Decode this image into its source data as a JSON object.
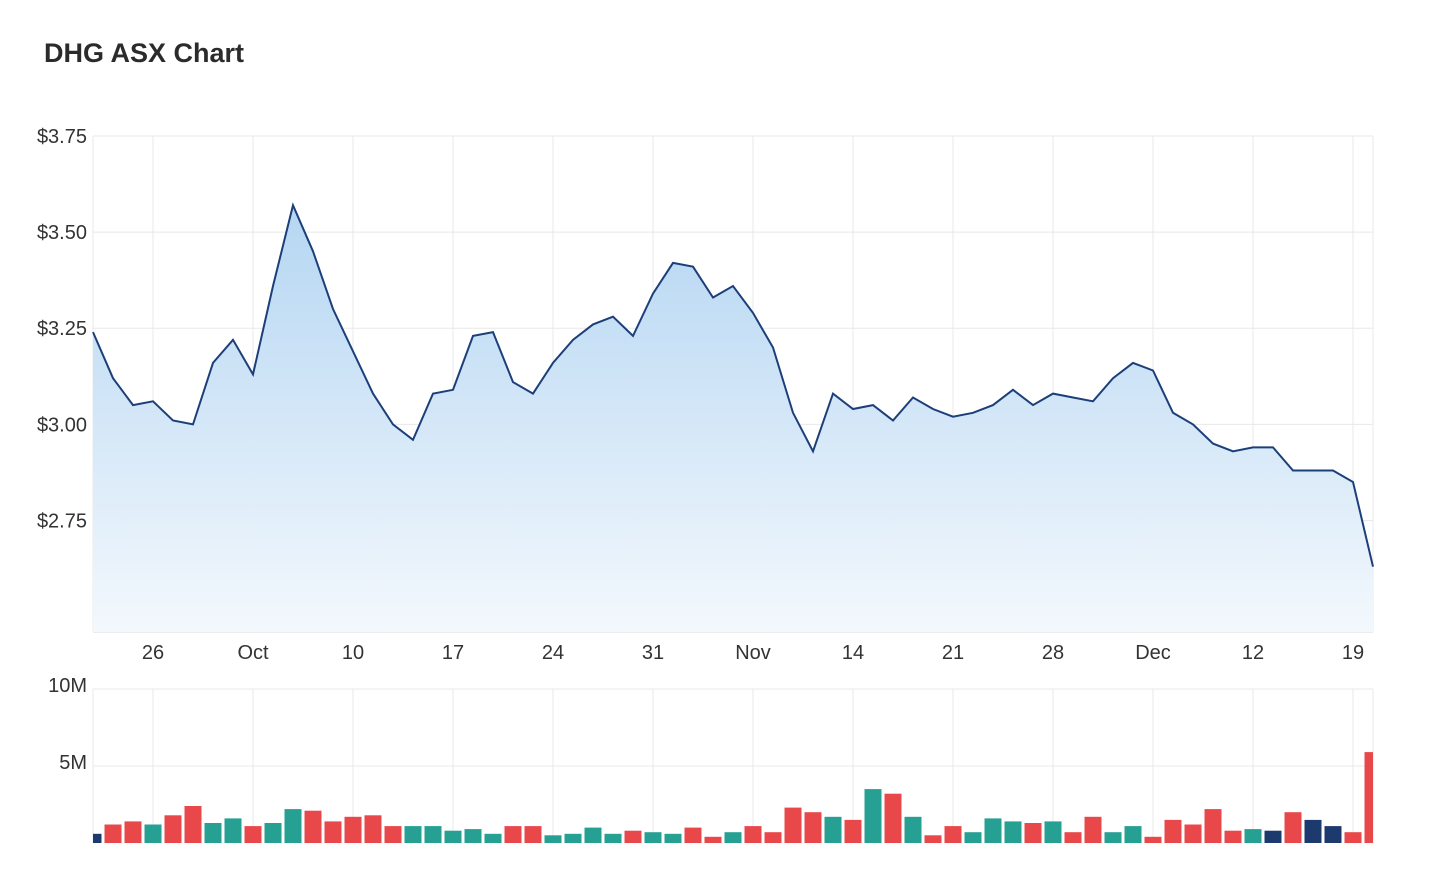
{
  "title": "DHG ASX Chart",
  "colors": {
    "price_line": "#1c3f7a",
    "area_top": "#b5d6f2",
    "area_bottom": "#f3f8fd",
    "volume_up": "#26a093",
    "volume_down": "#e8484a",
    "volume_neutral": "#1c3a6e",
    "grid": "#e8e8e8"
  },
  "chart_data": [
    {
      "type": "area",
      "title": "DHG ASX Chart",
      "ylim": [
        2.46,
        3.75
      ],
      "y_ticks": [
        {
          "value": 3.75,
          "label": "$3.75"
        },
        {
          "value": 3.5,
          "label": "$3.50"
        },
        {
          "value": 3.25,
          "label": "$3.25"
        },
        {
          "value": 3.0,
          "label": "$3.00"
        },
        {
          "value": 2.75,
          "label": "$2.75"
        }
      ],
      "x_ticks": [
        {
          "index": 3,
          "label": "26"
        },
        {
          "index": 8,
          "label": "Oct"
        },
        {
          "index": 13,
          "label": "10"
        },
        {
          "index": 18,
          "label": "17"
        },
        {
          "index": 23,
          "label": "24"
        },
        {
          "index": 28,
          "label": "31"
        },
        {
          "index": 33,
          "label": "Nov"
        },
        {
          "index": 38,
          "label": "14"
        },
        {
          "index": 43,
          "label": "21"
        },
        {
          "index": 48,
          "label": "28"
        },
        {
          "index": 53,
          "label": "Dec"
        },
        {
          "index": 58,
          "label": "12"
        },
        {
          "index": 63,
          "label": "19"
        }
      ],
      "grid": true,
      "series": [
        {
          "values": [
            3.24,
            3.12,
            3.05,
            3.06,
            3.01,
            3.0,
            3.16,
            3.22,
            3.13,
            3.36,
            3.57,
            3.45,
            3.3,
            3.19,
            3.08,
            3.0,
            2.96,
            3.08,
            3.09,
            3.23,
            3.24,
            3.11,
            3.08,
            3.16,
            3.22,
            3.26,
            3.28,
            3.23,
            3.34,
            3.42,
            3.41,
            3.33,
            3.36,
            3.29,
            3.2,
            3.03,
            2.93,
            3.08,
            3.04,
            3.05,
            3.01,
            3.07,
            3.04,
            3.02,
            3.03,
            3.05,
            3.09,
            3.05,
            3.08,
            3.07,
            3.06,
            3.12,
            3.16,
            3.14,
            3.03,
            3.0,
            2.95,
            2.93,
            2.94,
            2.94,
            2.88,
            2.88,
            2.88,
            2.85,
            2.63
          ]
        }
      ]
    },
    {
      "type": "bar",
      "ylim": [
        0,
        10000000
      ],
      "y_ticks": [
        {
          "value": 10000000,
          "label": "10M"
        },
        {
          "value": 5000000,
          "label": "5M"
        }
      ],
      "grid": true,
      "series": [
        {
          "values": [
            0.6,
            1.2,
            1.4,
            1.2,
            1.8,
            2.4,
            1.3,
            1.6,
            1.1,
            1.3,
            2.2,
            2.1,
            1.4,
            1.7,
            1.8,
            1.1,
            1.1,
            1.1,
            0.8,
            0.9,
            0.6,
            1.1,
            1.1,
            0.5,
            0.6,
            1.0,
            0.6,
            0.8,
            0.7,
            0.6,
            1.0,
            0.4,
            0.7,
            1.1,
            0.7,
            2.3,
            2.0,
            1.7,
            1.5,
            3.5,
            3.2,
            1.7,
            0.5,
            1.1,
            0.7,
            1.6,
            1.4,
            1.3,
            1.4,
            0.7,
            1.7,
            0.7,
            1.1,
            0.4,
            1.5,
            1.2,
            2.2,
            0.8,
            0.9,
            0.8,
            2.0,
            1.5,
            1.1,
            0.7,
            5.9
          ],
          "directions": [
            "n",
            "d",
            "d",
            "u",
            "d",
            "d",
            "u",
            "u",
            "d",
            "u",
            "u",
            "d",
            "d",
            "d",
            "d",
            "d",
            "u",
            "u",
            "u",
            "u",
            "u",
            "d",
            "d",
            "u",
            "u",
            "u",
            "u",
            "d",
            "u",
            "u",
            "d",
            "d",
            "u",
            "d",
            "d",
            "d",
            "d",
            "u",
            "d",
            "u",
            "d",
            "u",
            "d",
            "d",
            "u",
            "u",
            "u",
            "d",
            "u",
            "d",
            "d",
            "u",
            "u",
            "d",
            "d",
            "d",
            "d",
            "d",
            "u",
            "n",
            "d",
            "n",
            "n",
            "d",
            "d"
          ]
        }
      ]
    }
  ]
}
